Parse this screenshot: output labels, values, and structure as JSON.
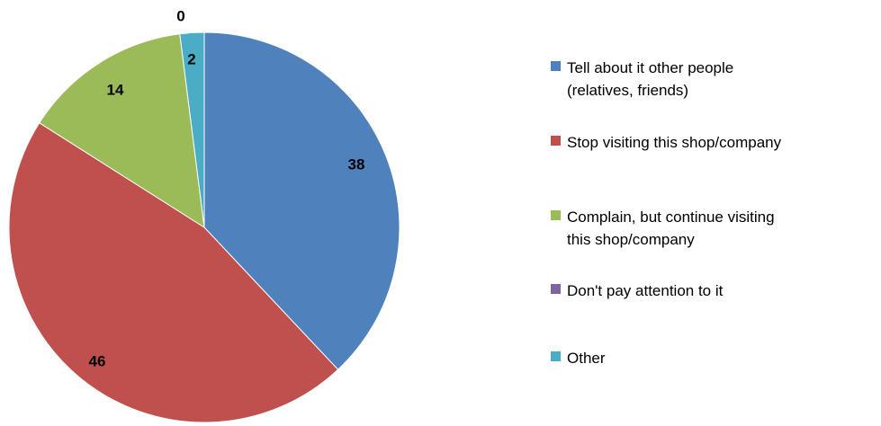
{
  "chart_data": {
    "type": "pie",
    "slices": [
      {
        "label": "Tell about it other people (relatives, friends)",
        "value": 38,
        "color": "#4F81BD"
      },
      {
        "label": "Stop visiting this shop/company",
        "value": 46,
        "color": "#C0504D"
      },
      {
        "label": "Complain, but continue visiting this shop/company",
        "value": 14,
        "color": "#9BBB59"
      },
      {
        "label": "Don't pay attention to it",
        "value": 0,
        "color": "#8064A2"
      },
      {
        "label": "Other",
        "value": 2,
        "color": "#4BACC6"
      }
    ],
    "legend": {
      "position": "right",
      "items": [
        {
          "lines": [
            "Tell about it other people",
            "(relatives, friends)"
          ],
          "color": "#4F81BD"
        },
        {
          "lines": [
            "Stop visiting this shop/company"
          ],
          "color": "#C0504D"
        },
        {
          "lines": [
            "Complain, but continue visiting",
            "this shop/company"
          ],
          "color": "#9BBB59"
        },
        {
          "lines": [
            "Don't pay attention to it"
          ],
          "color": "#8064A2"
        },
        {
          "lines": [
            "Other"
          ],
          "color": "#4BACC6"
        }
      ]
    },
    "data_labels": [
      "38",
      "46",
      "14",
      "0",
      "2"
    ]
  }
}
